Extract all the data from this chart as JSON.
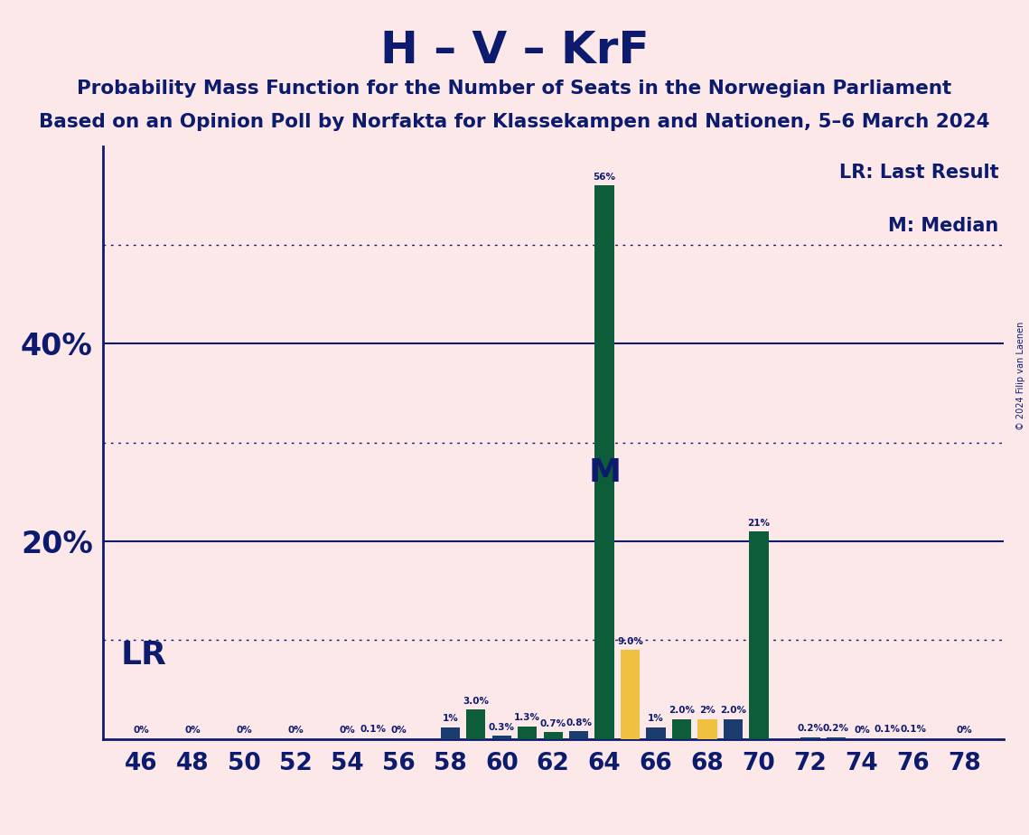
{
  "title": "H – V – KrF",
  "subtitle1": "Probability Mass Function for the Number of Seats in the Norwegian Parliament",
  "subtitle2": "Based on an Opinion Poll by Norfakta for Klassekampen and Nationen, 5–6 March 2024",
  "copyright": "© 2024 Filip van Laenen",
  "legend_lr": "LR: Last Result",
  "legend_m": "M: Median",
  "lr_label": "LR",
  "median_label": "M",
  "seats": [
    46,
    47,
    48,
    49,
    50,
    51,
    52,
    53,
    54,
    55,
    56,
    57,
    58,
    59,
    60,
    61,
    62,
    63,
    64,
    65,
    66,
    67,
    68,
    69,
    70,
    71,
    72,
    73,
    74,
    75,
    76,
    77,
    78
  ],
  "probabilities": [
    0.0,
    0.0,
    0.0,
    0.0,
    0.0,
    0.0,
    0.0,
    0.0,
    0.0,
    0.1,
    0.0,
    0.0,
    1.2,
    3.0,
    0.3,
    1.3,
    0.7,
    0.8,
    56.0,
    9.0,
    1.2,
    2.0,
    2.0,
    2.0,
    21.0,
    0.0,
    0.2,
    0.2,
    0.0,
    0.1,
    0.1,
    0.0,
    0.0
  ],
  "bar_colors_by_seat": {
    "58": "#1b3c6e",
    "59": "#0d5c3a",
    "60": "#1b3c6e",
    "61": "#0d5c3a",
    "62": "#0d5c3a",
    "63": "#1b3c6e",
    "64": "#0d5c3a",
    "65": "#f0c040",
    "66": "#1b3c6e",
    "67": "#0d5c3a",
    "68": "#f0c040",
    "69": "#1b3c6e",
    "70": "#0d5c3a",
    "72": "#1b3c6e",
    "73": "#1b3c6e"
  },
  "default_bar_color": "#1b3c6e",
  "lr_seat": 65,
  "median_seat": 64,
  "bg_color": "#fce8e8",
  "dark_navy": "#0d1b6e",
  "teal": "#0d5c3a",
  "gold": "#f0c040",
  "ylim_max": 60,
  "hlines_solid": [
    20,
    40
  ],
  "hlines_dotted": [
    10,
    30,
    50
  ],
  "even_seats_labels": [
    46,
    48,
    50,
    52,
    54,
    56,
    58,
    60,
    62,
    64,
    66,
    68,
    70,
    72,
    74,
    76,
    78
  ]
}
